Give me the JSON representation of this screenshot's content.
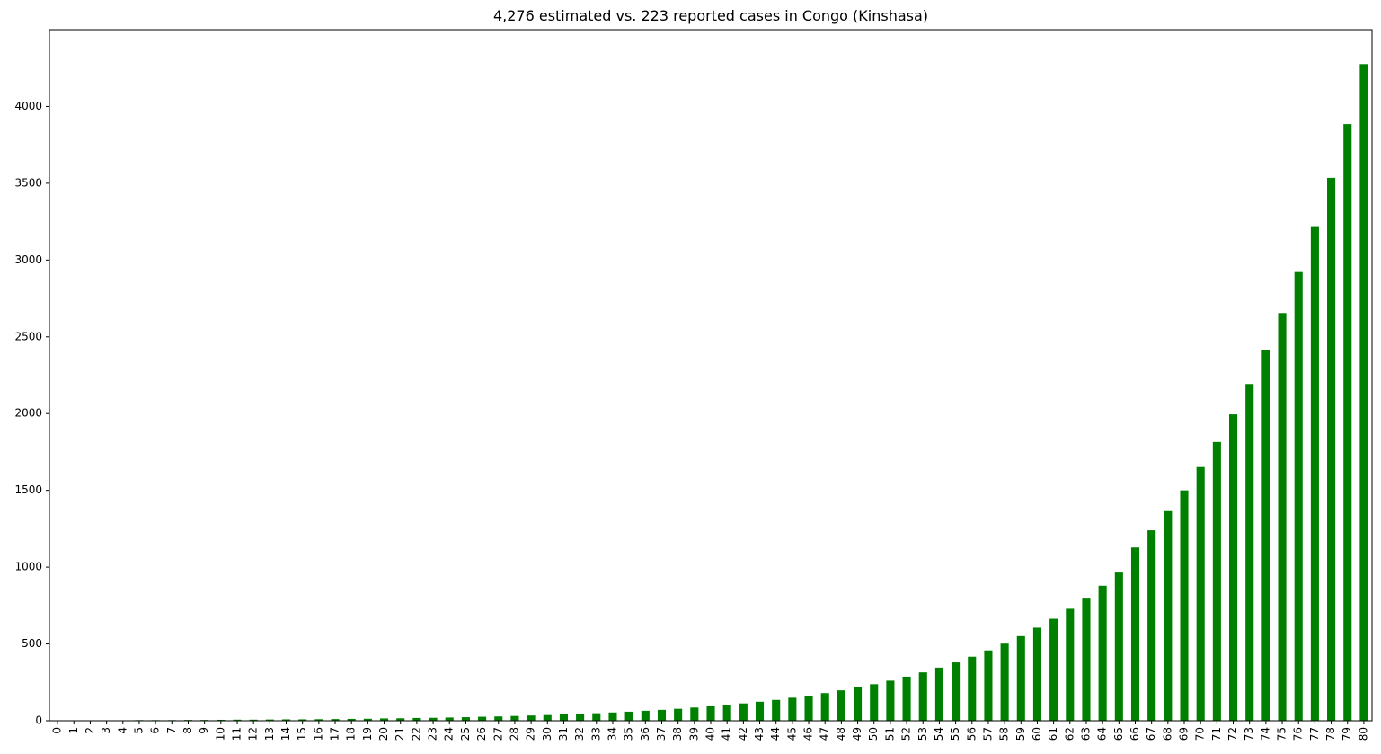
{
  "chart_data": {
    "type": "bar",
    "title": "4,276 estimated vs. 223 reported cases in Congo (Kinshasa)",
    "xlabel": "",
    "ylabel": "",
    "ylim": [
      0,
      4500
    ],
    "yticks": [
      0,
      500,
      1000,
      1500,
      2000,
      2500,
      3000,
      3500,
      4000
    ],
    "grid": false,
    "bar_color": "#008000",
    "categories": [
      "0",
      "1",
      "2",
      "3",
      "4",
      "5",
      "6",
      "7",
      "8",
      "9",
      "10",
      "11",
      "12",
      "13",
      "14",
      "15",
      "16",
      "17",
      "18",
      "19",
      "20",
      "21",
      "22",
      "23",
      "24",
      "25",
      "26",
      "27",
      "28",
      "29",
      "30",
      "31",
      "32",
      "33",
      "34",
      "35",
      "36",
      "37",
      "38",
      "39",
      "40",
      "41",
      "42",
      "43",
      "44",
      "45",
      "46",
      "47",
      "48",
      "49",
      "50",
      "51",
      "52",
      "53",
      "54",
      "55",
      "56",
      "57",
      "58",
      "59",
      "60",
      "61",
      "62",
      "63",
      "64",
      "65",
      "66",
      "67",
      "68",
      "69",
      "70",
      "71",
      "72",
      "73",
      "74",
      "75",
      "76",
      "77",
      "78",
      "79",
      "80"
    ],
    "values": [
      2,
      2,
      3,
      3,
      3,
      4,
      4,
      4,
      5,
      5,
      6,
      7,
      7,
      8,
      9,
      9,
      10,
      11,
      12,
      13,
      15,
      16,
      18,
      19,
      21,
      23,
      26,
      28,
      31,
      34,
      37,
      41,
      45,
      49,
      54,
      59,
      65,
      71,
      78,
      86,
      94,
      103,
      113,
      124,
      136,
      150,
      164,
      180,
      198,
      217,
      238,
      261,
      287,
      315,
      346,
      380,
      417,
      458,
      502,
      551,
      606,
      664,
      729,
      801,
      879,
      965,
      1128,
      1240,
      1365,
      1500,
      1652,
      1815,
      1995,
      2193,
      2415,
      2655,
      2922,
      3215,
      3535,
      3885,
      4276
    ]
  }
}
